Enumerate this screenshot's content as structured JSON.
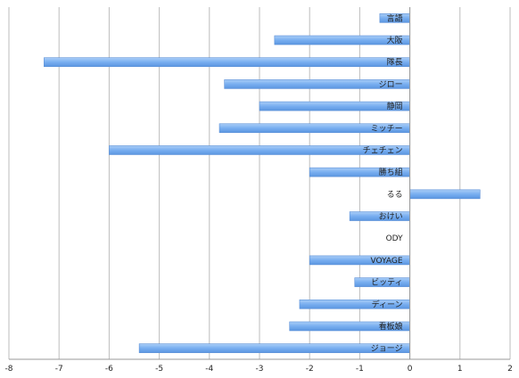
{
  "chart_data": {
    "type": "bar",
    "orientation": "horizontal",
    "categories": [
      "言語",
      "大阪",
      "隊長",
      "ジロー",
      "静岡",
      "ミッチー",
      "チェチェン",
      "勝ち組",
      "るる",
      "おけい",
      "ODY",
      "VOYAGE",
      "ビッティ",
      "ディーン",
      "看板娘",
      "ジョージ"
    ],
    "values": [
      -0.6,
      -2.7,
      -7.3,
      -3.7,
      -3.0,
      -3.8,
      -6.0,
      -2.0,
      1.4,
      -1.2,
      0,
      -2.0,
      -1.1,
      -2.2,
      -2.4,
      -5.4
    ],
    "xlim": [
      -8,
      2
    ],
    "xticks": [
      "-8",
      "-7",
      "-6",
      "-5",
      "-4",
      "-3",
      "-2",
      "-1",
      "0",
      "1",
      "2"
    ],
    "grid": "vertical",
    "legend": "none",
    "bar_color": "#78aef0"
  }
}
